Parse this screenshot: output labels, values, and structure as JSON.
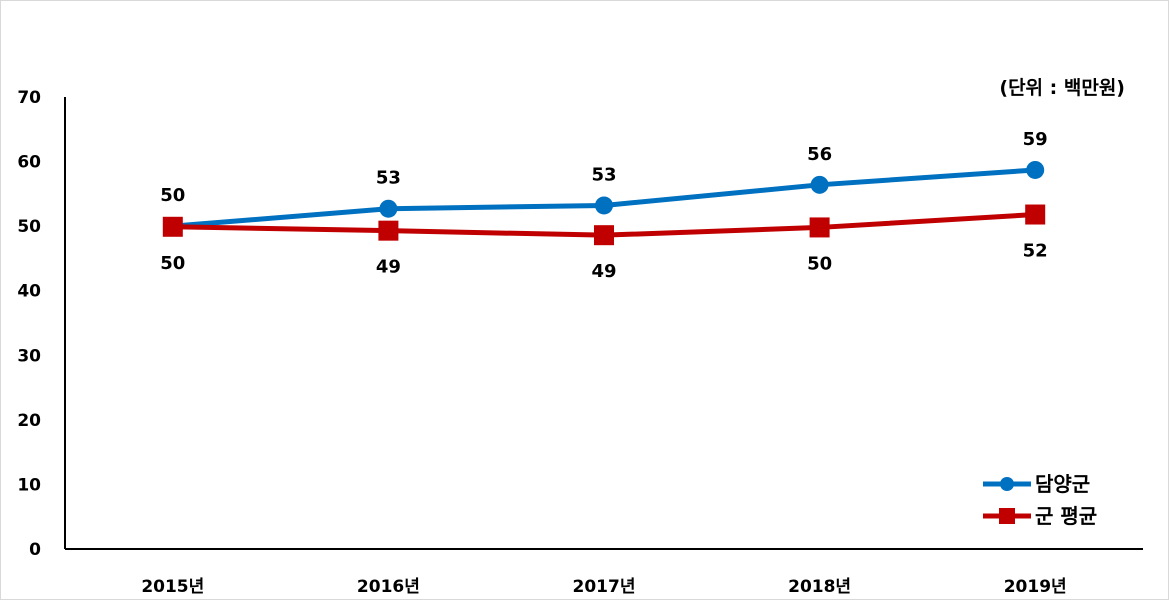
{
  "chart_data": {
    "type": "line",
    "unit_label": "(단위 : 백만원)",
    "categories": [
      "2015년",
      "2016년",
      "2017년",
      "2018년",
      "2019년"
    ],
    "ylim": [
      0,
      70
    ],
    "yticks": [
      0,
      10,
      20,
      30,
      40,
      50,
      60,
      70
    ],
    "grid": false,
    "legend_position": "bottom-right",
    "series": [
      {
        "name": "담양군",
        "color": "#0070c0",
        "marker": "circle",
        "values": [
          50,
          52.7,
          53.2,
          56.4,
          58.7
        ],
        "labels": [
          "50",
          "53",
          "53",
          "56",
          "59"
        ],
        "label_position": "above"
      },
      {
        "name": "군 평균",
        "color": "#c00000",
        "marker": "square",
        "values": [
          49.9,
          49.3,
          48.6,
          49.8,
          51.8
        ],
        "labels": [
          "50",
          "49",
          "49",
          "50",
          "52"
        ],
        "label_position": "below"
      }
    ]
  }
}
